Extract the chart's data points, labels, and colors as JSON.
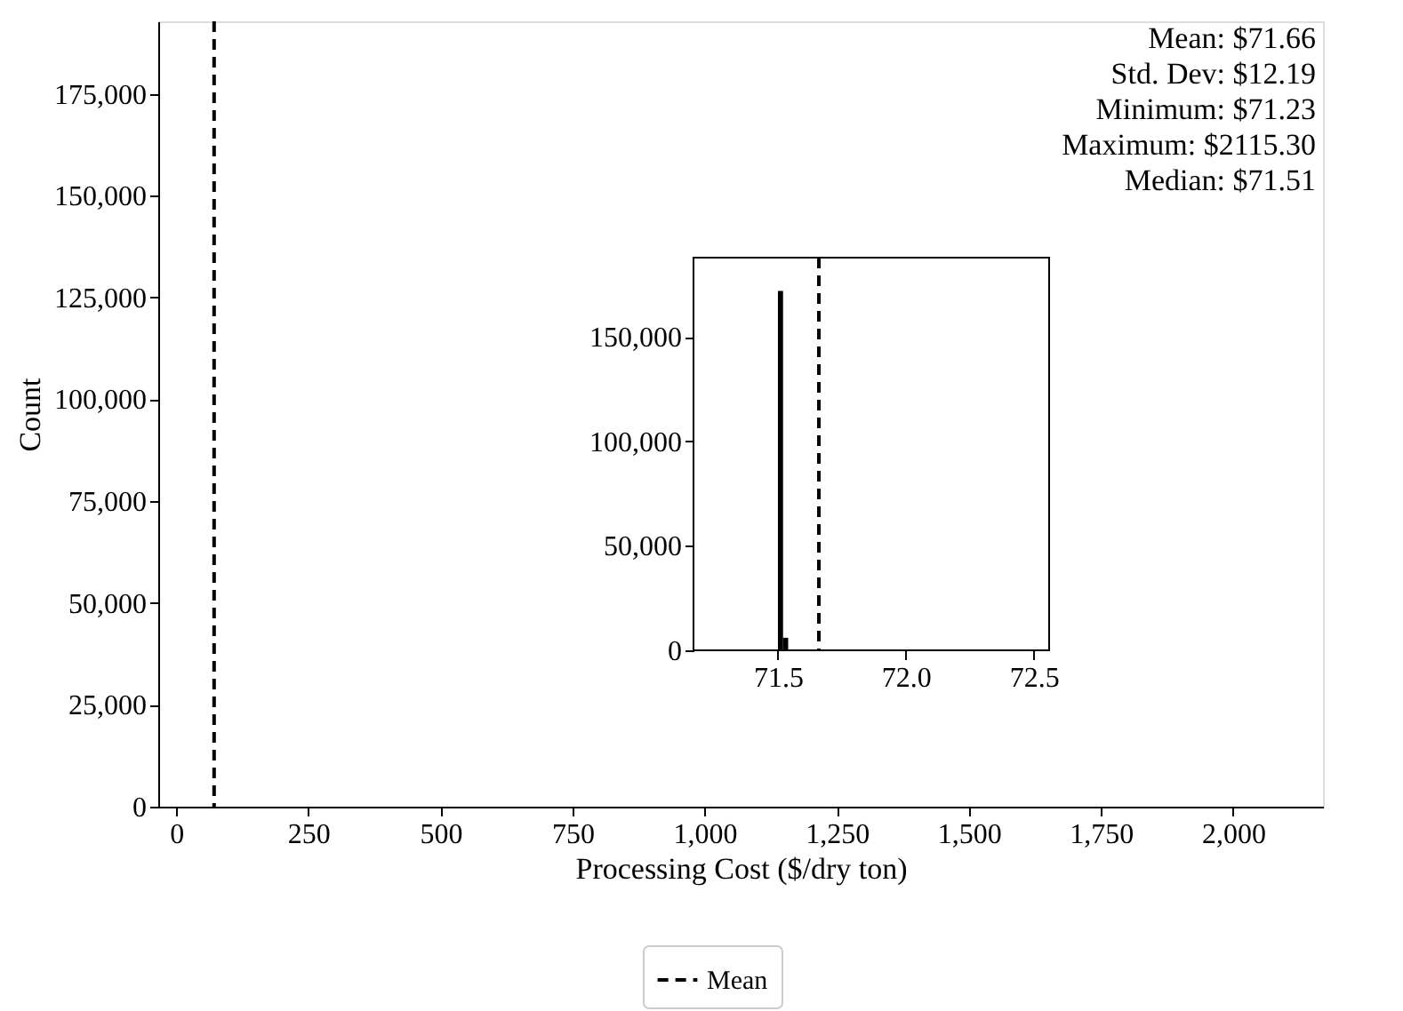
{
  "chart_data": [
    {
      "type": "histogram",
      "xlabel": "Processing Cost ($/dry ton)",
      "ylabel": "Count",
      "xlim": [
        -34,
        2170
      ],
      "xticks": [
        0,
        250,
        500,
        750,
        {
          "value": 1000,
          "label": "1,000"
        },
        {
          "value": 1250,
          "label": "1,250"
        },
        {
          "value": 1500,
          "label": "1,500"
        },
        {
          "value": 1750,
          "label": "1,750"
        },
        {
          "value": 2000,
          "label": "2,000"
        }
      ],
      "ylim": [
        0,
        192800
      ],
      "yticks": [
        0,
        {
          "value": 25000,
          "label": "25,000"
        },
        {
          "value": 50000,
          "label": "50,000"
        },
        {
          "value": 75000,
          "label": "75,000"
        },
        {
          "value": 100000,
          "label": "100,000"
        },
        {
          "value": 125000,
          "label": "125,000"
        },
        {
          "value": 150000,
          "label": "150,000"
        },
        {
          "value": 175000,
          "label": "175,000"
        }
      ],
      "ref_lines": [
        {
          "axis": "x",
          "value": 71.66,
          "label": "Mean",
          "color": "#000000",
          "line_style": "dashed"
        }
      ],
      "annotations": [
        "Mean: $71.66",
        "Std. Dev: $12.19",
        "Minimum: $71.23",
        "Maximum: $2115.30",
        "Median: $71.51"
      ],
      "legend": "bottom",
      "grid": false
    },
    {
      "type": "histogram",
      "bins": [
        71.5,
        71.52,
        71.54
      ],
      "values": [
        172000,
        6000
      ],
      "color": "#000000",
      "xlim": [
        71.17,
        72.56
      ],
      "xticks": [
        71.5,
        {
          "value": 72.0,
          "label": "72.0"
        },
        72.5
      ],
      "ylim": [
        0,
        188000
      ],
      "yticks": [
        0,
        {
          "value": 50000,
          "label": "50,000"
        },
        {
          "value": 100000,
          "label": "100,000"
        },
        {
          "value": 150000,
          "label": "150,000"
        }
      ],
      "ref_lines": [
        {
          "axis": "x",
          "value": 71.66,
          "color": "#000000",
          "line_style": "dashed"
        }
      ],
      "grid": false
    }
  ]
}
